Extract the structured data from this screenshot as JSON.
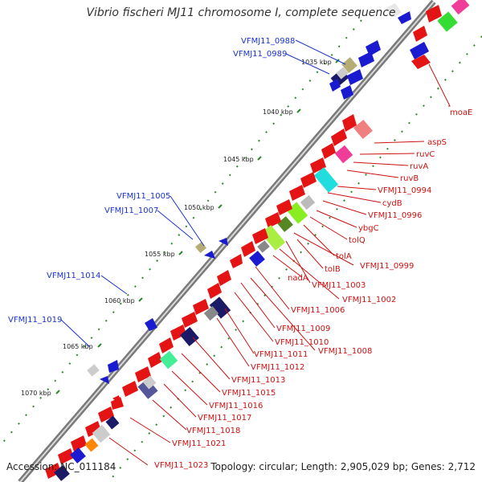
{
  "title": "Vibrio fischeri MJ11 chromosome I, complete sequence",
  "accession": "Accession: NC_011184",
  "summary": "Topology: circular; Length: 2,905,029 bp; Genes: 2,712",
  "colors": {
    "backbone": "#7a7a7a",
    "forward_gene": "#e51414",
    "reverse_gene": "#1a1ad1",
    "label_blue": "#1a33cc",
    "label_red": "#cc1111",
    "tick": "#2a8a2a"
  },
  "ticks": [
    "1035 kbp",
    "1040 kbp",
    "1045 kbp",
    "1050 kbp",
    "1055 kbp",
    "1060 kbp",
    "1065 kbp",
    "1070 kbp"
  ],
  "left_labels": [
    "VFMJ11_0988",
    "VFMJ11_0989",
    "VFMJ11_1005",
    "VFMJ11_1007",
    "VFMJ11_1014",
    "VFMJ11_1019"
  ],
  "right_labels": [
    "moaE",
    "aspS",
    "ruvC",
    "ruvA",
    "ruvB",
    "VFMJ11_0994",
    "cydB",
    "VFMJ11_0996",
    "ybgC",
    "tolQ",
    "tolA",
    "VFMJ11_0999",
    "tolB",
    "VFMJ11_1003",
    "nadA",
    "VFMJ11_1002",
    "VFMJ11_1006",
    "VFMJ11_1009",
    "VFMJ11_1010",
    "VFMJ11_1008",
    "VFMJ11_1011",
    "VFMJ11_1012",
    "VFMJ11_1013",
    "VFMJ11_1015",
    "VFMJ11_1016",
    "VFMJ11_1017",
    "VFMJ11_1018",
    "VFMJ11_1021",
    "VFMJ11_1023"
  ]
}
